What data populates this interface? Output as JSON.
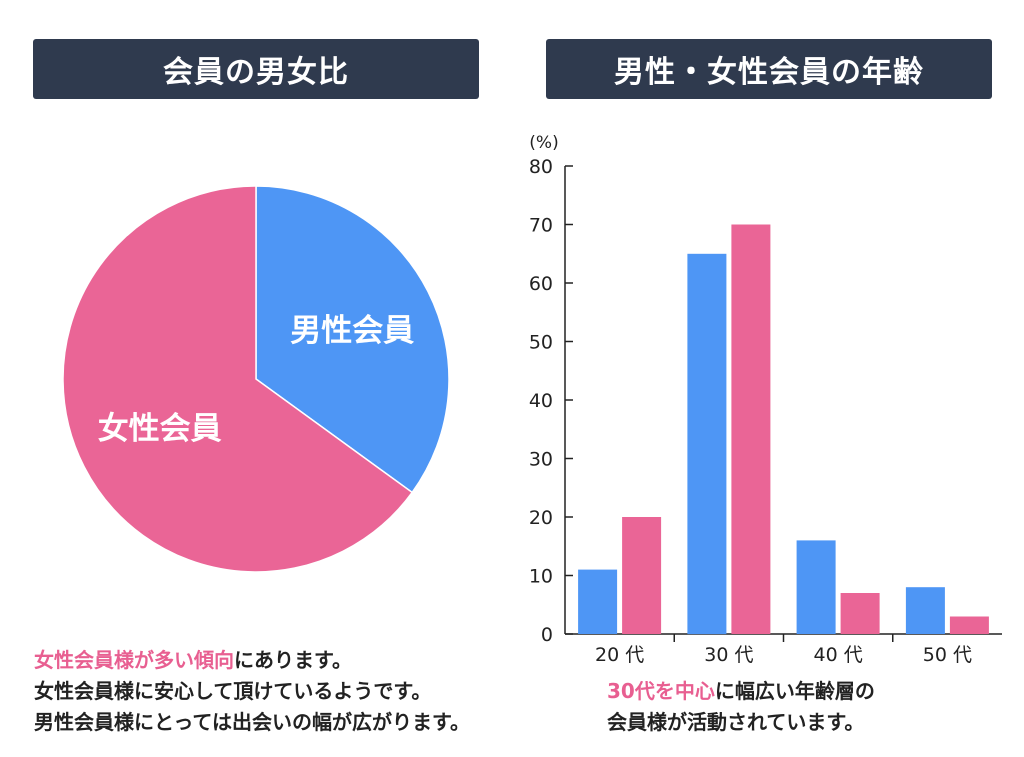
{
  "titles": {
    "pie": "会員の男女比",
    "bar": "男性・女性会員の年齢"
  },
  "colors": {
    "male": "#4e96f5",
    "female": "#ea6596",
    "title_bg": "#2f3a4e",
    "highlight": "#e85f91"
  },
  "chart_data": [
    {
      "type": "pie",
      "title": "会員の男女比",
      "slices": [
        {
          "label": "男性会員",
          "value": 35,
          "color": "#4e96f5"
        },
        {
          "label": "女性会員",
          "value": 65,
          "color": "#ea6596"
        }
      ]
    },
    {
      "type": "bar",
      "title": "男性・女性会員の年齢",
      "unit_label": "(%)",
      "categories": [
        "20 代",
        "30 代",
        "40 代",
        "50 代"
      ],
      "series": [
        {
          "values": [
            11,
            65,
            16,
            8
          ],
          "color": "#4e96f5"
        },
        {
          "values": [
            20,
            70,
            7,
            3
          ],
          "color": "#ea6596"
        }
      ],
      "ylim": [
        0,
        80
      ],
      "yticks": [
        0,
        10,
        20,
        30,
        40,
        50,
        60,
        70,
        80
      ]
    }
  ],
  "captions": {
    "left": {
      "line1_highlight": "女性会員様が多い傾向",
      "line1_rest": "にあります。",
      "line2": "女性会員様に安心して頂けているようです。",
      "line3": "男性会員様にとっては出会いの幅が広がります。"
    },
    "right": {
      "line1_highlight": "30代を中心",
      "line1_rest": "に幅広い年齢層の",
      "line2": "会員様が活動されています。"
    }
  }
}
